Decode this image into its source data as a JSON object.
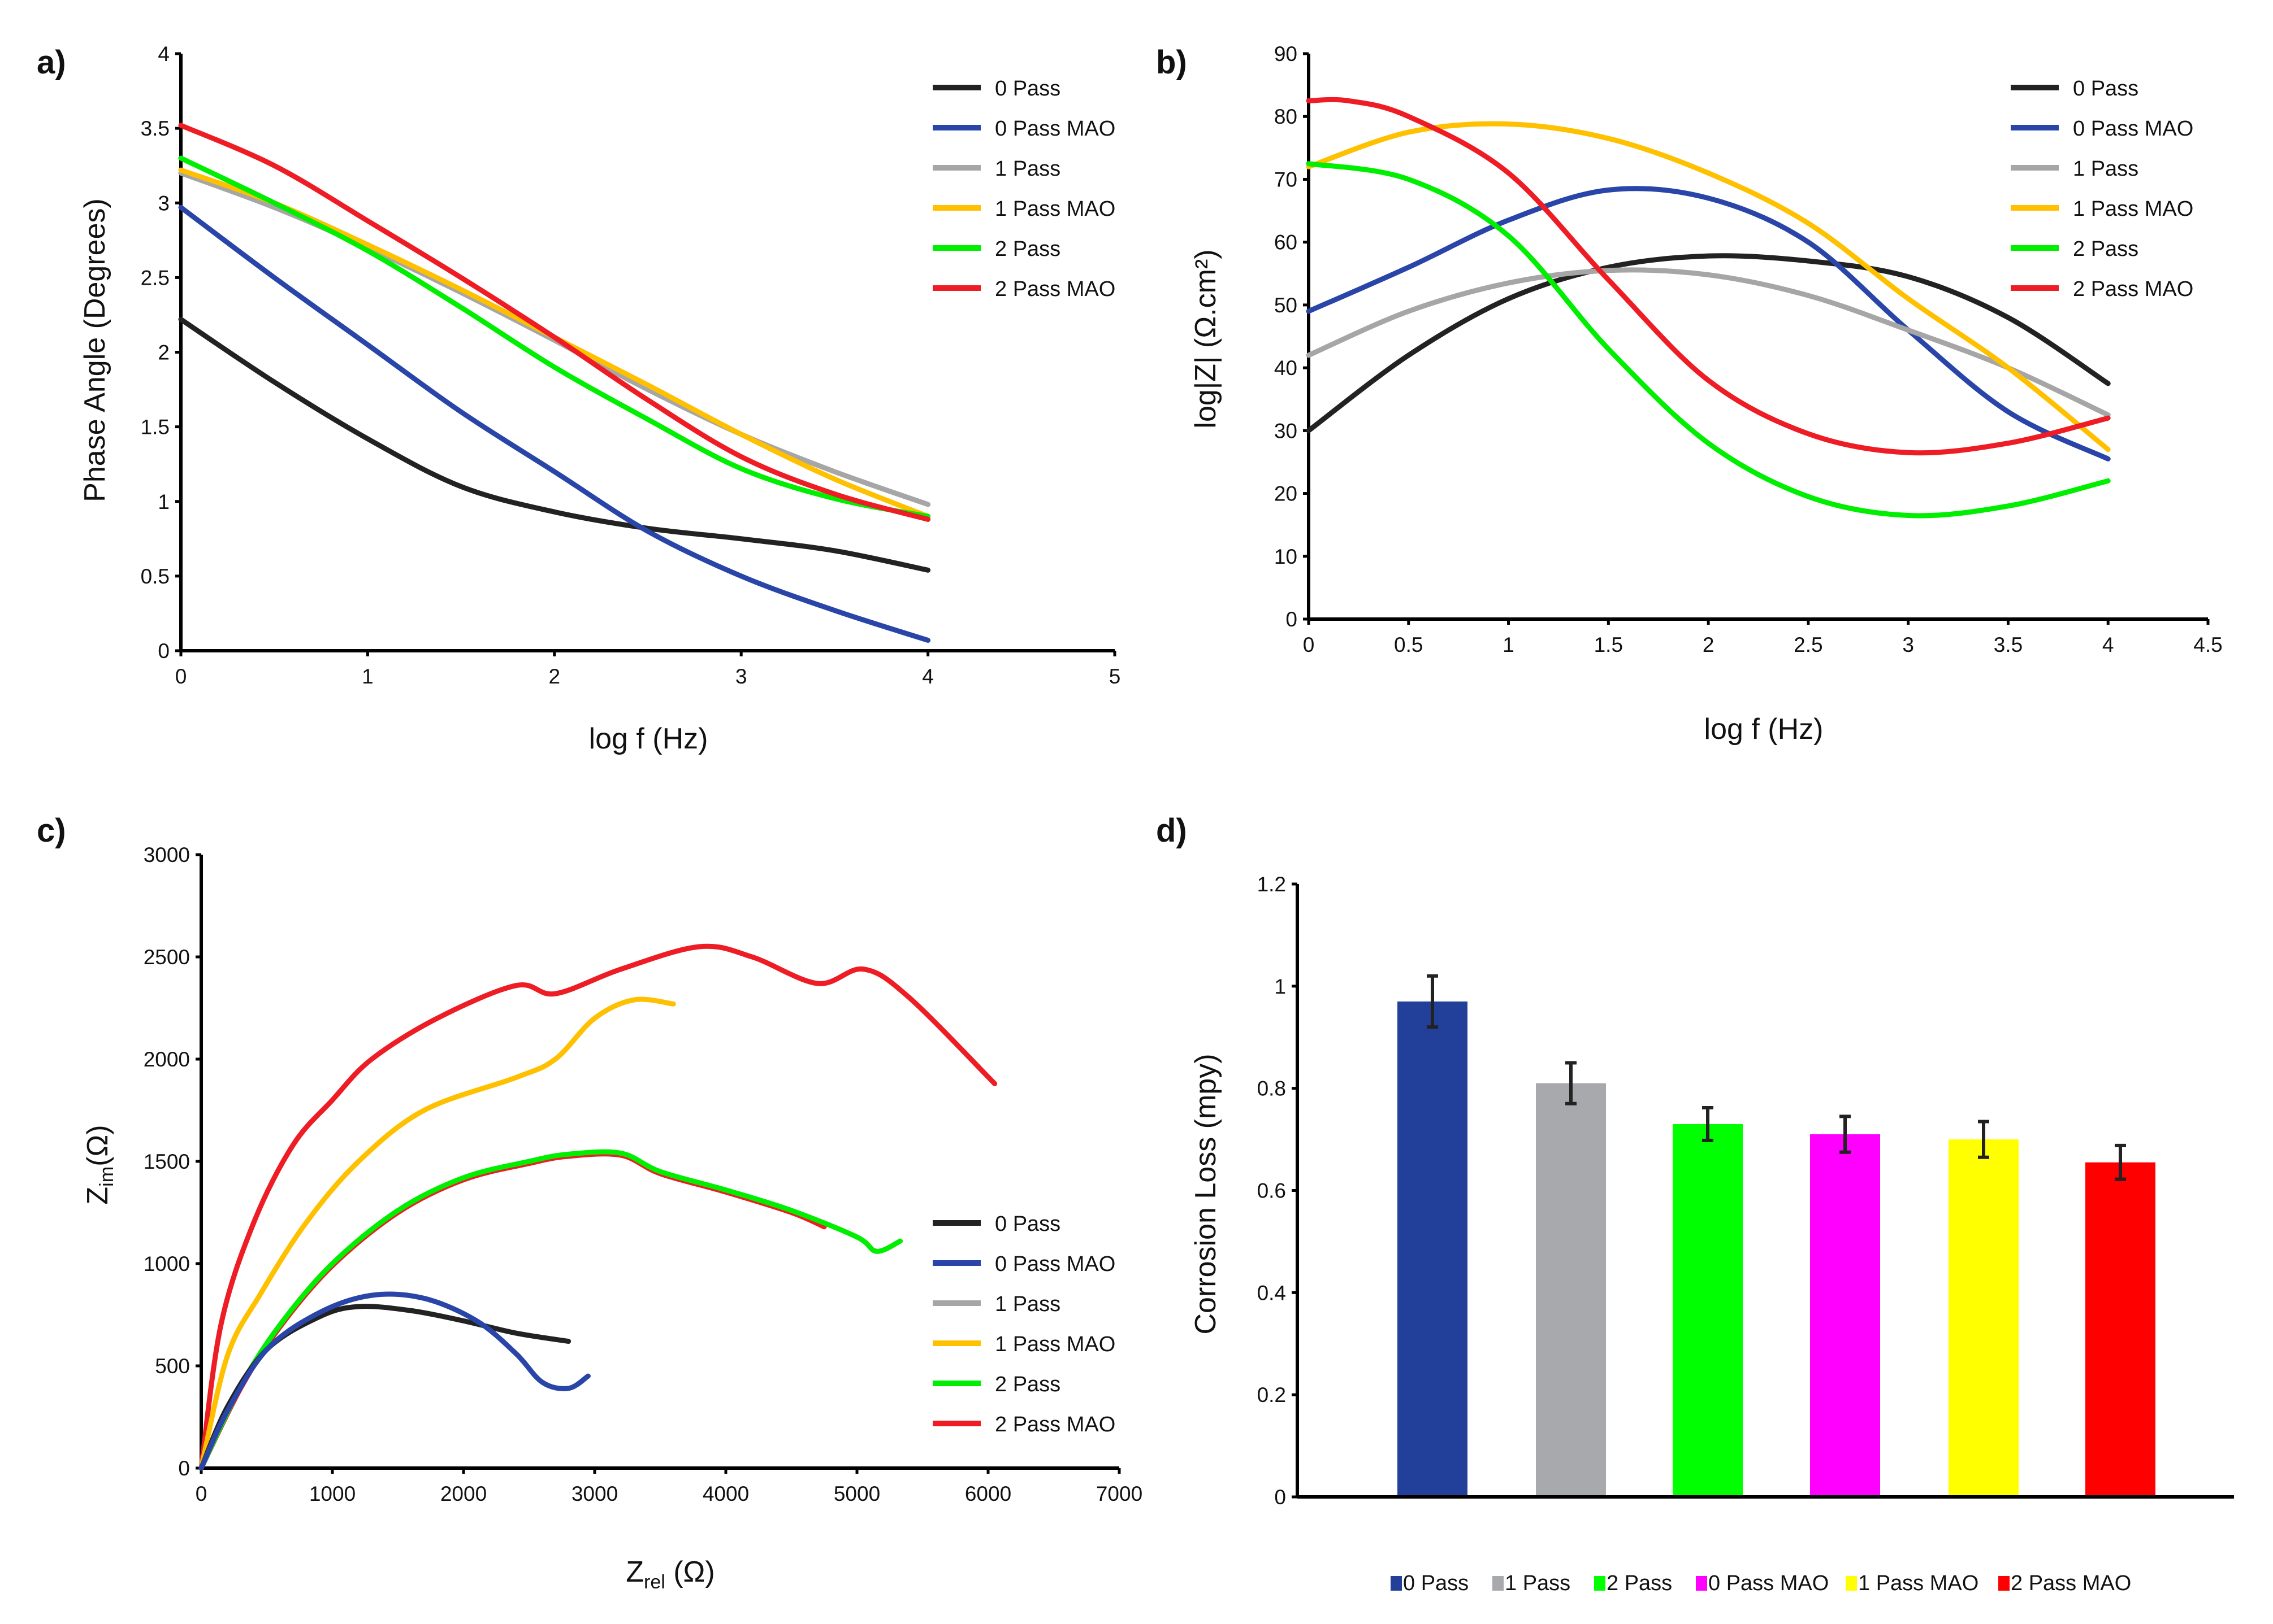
{
  "chart_data": [
    {
      "panel_label": "a)",
      "type": "line",
      "xlabel": "log f (Hz)",
      "ylabel": "Phase Angle (Degrees)",
      "xlim": [
        0,
        5
      ],
      "ylim": [
        0,
        4
      ],
      "xticks": [
        "0",
        "1",
        "2",
        "3",
        "4",
        "5"
      ],
      "yticks": [
        "0",
        "0.5",
        "1",
        "1.5",
        "2",
        "2.5",
        "3",
        "3.5",
        "4"
      ],
      "grid": false,
      "legend_position": "top-right",
      "series": [
        {
          "name": "0 Pass",
          "color": "#222222",
          "points": [
            [
              0,
              2.22
            ],
            [
              0.5,
              1.8
            ],
            [
              1,
              1.42
            ],
            [
              1.5,
              1.1
            ],
            [
              2,
              0.93
            ],
            [
              2.5,
              0.82
            ],
            [
              3,
              0.75
            ],
            [
              3.5,
              0.67
            ],
            [
              4,
              0.54
            ]
          ]
        },
        {
          "name": "0 Pass MAO",
          "color": "#2a45a8",
          "points": [
            [
              0,
              2.97
            ],
            [
              0.5,
              2.5
            ],
            [
              1,
              2.05
            ],
            [
              1.5,
              1.6
            ],
            [
              2,
              1.2
            ],
            [
              2.5,
              0.8
            ],
            [
              3,
              0.5
            ],
            [
              3.5,
              0.27
            ],
            [
              4,
              0.07
            ]
          ]
        },
        {
          "name": "1 Pass",
          "color": "#a6a6a6",
          "points": [
            [
              0,
              3.2
            ],
            [
              0.5,
              2.97
            ],
            [
              1,
              2.7
            ],
            [
              1.5,
              2.4
            ],
            [
              2,
              2.08
            ],
            [
              2.5,
              1.75
            ],
            [
              3,
              1.45
            ],
            [
              3.5,
              1.2
            ],
            [
              4,
              0.98
            ]
          ]
        },
        {
          "name": "1 Pass MAO",
          "color": "#ffc000",
          "points": [
            [
              0,
              3.22
            ],
            [
              0.5,
              3.0
            ],
            [
              1,
              2.72
            ],
            [
              1.5,
              2.42
            ],
            [
              2,
              2.1
            ],
            [
              2.5,
              1.78
            ],
            [
              3,
              1.45
            ],
            [
              3.5,
              1.15
            ],
            [
              4,
              0.9
            ]
          ]
        },
        {
          "name": "2 Pass",
          "color": "#00ee00",
          "points": [
            [
              0,
              3.3
            ],
            [
              0.5,
              3.0
            ],
            [
              1,
              2.68
            ],
            [
              1.5,
              2.3
            ],
            [
              2,
              1.9
            ],
            [
              2.5,
              1.55
            ],
            [
              3,
              1.22
            ],
            [
              3.5,
              1.02
            ],
            [
              4,
              0.9
            ]
          ]
        },
        {
          "name": "2 Pass MAO",
          "color": "#ee1c24",
          "points": [
            [
              0,
              3.52
            ],
            [
              0.5,
              3.25
            ],
            [
              1,
              2.88
            ],
            [
              1.5,
              2.5
            ],
            [
              2,
              2.1
            ],
            [
              2.5,
              1.68
            ],
            [
              3,
              1.3
            ],
            [
              3.5,
              1.05
            ],
            [
              4,
              0.88
            ]
          ]
        }
      ]
    },
    {
      "panel_label": "b)",
      "type": "line",
      "xlabel": "log f (Hz)",
      "ylabel": "log|Z| (Ω.cm²)",
      "xlim": [
        0,
        4.5
      ],
      "ylim": [
        0,
        90
      ],
      "xticks": [
        "0",
        "0.5",
        "1",
        "1.5",
        "2",
        "2.5",
        "3",
        "3.5",
        "4",
        "4.5"
      ],
      "yticks": [
        "0",
        "10",
        "20",
        "30",
        "40",
        "50",
        "60",
        "70",
        "80",
        "90"
      ],
      "grid": false,
      "legend_position": "top-right",
      "series": [
        {
          "name": "0 Pass",
          "color": "#222222",
          "points": [
            [
              0,
              30
            ],
            [
              0.5,
              42
            ],
            [
              1,
              51
            ],
            [
              1.5,
              56
            ],
            [
              2,
              57.8
            ],
            [
              2.5,
              57
            ],
            [
              3,
              54.5
            ],
            [
              3.5,
              48
            ],
            [
              4,
              37.5
            ]
          ]
        },
        {
          "name": "0 Pass MAO",
          "color": "#2a45a8",
          "points": [
            [
              0,
              49
            ],
            [
              0.5,
              56
            ],
            [
              1,
              63.5
            ],
            [
              1.5,
              68.3
            ],
            [
              2,
              67
            ],
            [
              2.5,
              60
            ],
            [
              3,
              46
            ],
            [
              3.5,
              33
            ],
            [
              4,
              25.5
            ]
          ]
        },
        {
          "name": "1 Pass",
          "color": "#a6a6a6",
          "points": [
            [
              0,
              42
            ],
            [
              0.5,
              49
            ],
            [
              1,
              53.5
            ],
            [
              1.5,
              55.5
            ],
            [
              2,
              54.8
            ],
            [
              2.5,
              51.5
            ],
            [
              3,
              46
            ],
            [
              3.5,
              40
            ],
            [
              4,
              32.5
            ]
          ]
        },
        {
          "name": "1 Pass MAO",
          "color": "#ffc000",
          "points": [
            [
              0,
              72
            ],
            [
              0.5,
              77.5
            ],
            [
              1,
              78.8
            ],
            [
              1.5,
              76.5
            ],
            [
              2,
              71
            ],
            [
              2.5,
              63
            ],
            [
              3,
              51
            ],
            [
              3.5,
              40
            ],
            [
              4,
              27
            ]
          ]
        },
        {
          "name": "2 Pass",
          "color": "#00ee00",
          "points": [
            [
              0,
              72.5
            ],
            [
              0.5,
              70
            ],
            [
              1,
              61
            ],
            [
              1.5,
              43
            ],
            [
              2,
              28
            ],
            [
              2.5,
              19.5
            ],
            [
              3,
              16.5
            ],
            [
              3.5,
              18
            ],
            [
              4,
              22
            ]
          ]
        },
        {
          "name": "2 Pass MAO",
          "color": "#ee1c24",
          "points": [
            [
              0,
              82.5
            ],
            [
              0.2,
              82.5
            ],
            [
              0.5,
              80
            ],
            [
              1,
              71
            ],
            [
              1.5,
              54
            ],
            [
              2,
              38
            ],
            [
              2.5,
              29.5
            ],
            [
              3,
              26.5
            ],
            [
              3.5,
              28
            ],
            [
              4,
              32
            ]
          ]
        }
      ]
    },
    {
      "panel_label": "c)",
      "type": "line",
      "xlabel": "Z",
      "xlabel_sub": "rel",
      "xlabel_unit": " (Ω)",
      "ylabel": "Z",
      "ylabel_sub": "im",
      "ylabel_unit": "(Ω)",
      "xlim": [
        0,
        7000
      ],
      "ylim": [
        0,
        3000
      ],
      "xticks": [
        "0",
        "1000",
        "2000",
        "3000",
        "4000",
        "5000",
        "6000",
        "7000"
      ],
      "yticks": [
        "0",
        "500",
        "1000",
        "1500",
        "2000",
        "2500",
        "3000"
      ],
      "grid": false,
      "legend_position": "right",
      "series": [
        {
          "name": "",
          "color": "#ee1c24",
          "in_legend": false,
          "points": [
            [
              0,
              0
            ],
            [
              300,
              390
            ],
            [
              600,
              690
            ],
            [
              1000,
              990
            ],
            [
              1500,
              1250
            ],
            [
              2000,
              1410
            ],
            [
              2500,
              1490
            ],
            [
              2800,
              1525
            ],
            [
              3200,
              1530
            ],
            [
              3500,
              1440
            ],
            [
              4000,
              1350
            ],
            [
              4500,
              1250
            ],
            [
              4750,
              1180
            ]
          ]
        },
        {
          "name": "2 Pass MAO",
          "color": "#ee1c24",
          "points": [
            [
              0,
              0
            ],
            [
              150,
              700
            ],
            [
              400,
              1200
            ],
            [
              700,
              1580
            ],
            [
              1000,
              1800
            ],
            [
              1300,
              2000
            ],
            [
              1800,
              2200
            ],
            [
              2400,
              2360
            ],
            [
              2700,
              2320
            ],
            [
              3200,
              2440
            ],
            [
              3800,
              2550
            ],
            [
              4200,
              2500
            ],
            [
              4700,
              2370
            ],
            [
              5050,
              2440
            ],
            [
              5400,
              2300
            ],
            [
              6050,
              1880
            ]
          ]
        },
        {
          "name": "1 Pass MAO",
          "color": "#ffc000",
          "points": [
            [
              0,
              0
            ],
            [
              200,
              550
            ],
            [
              450,
              850
            ],
            [
              800,
              1200
            ],
            [
              1200,
              1500
            ],
            [
              1700,
              1750
            ],
            [
              2400,
              1910
            ],
            [
              2700,
              2000
            ],
            [
              3000,
              2200
            ],
            [
              3300,
              2290
            ],
            [
              3600,
              2270
            ]
          ]
        },
        {
          "name": "2 Pass",
          "color": "#00ee00",
          "points": [
            [
              0,
              0
            ],
            [
              300,
              400
            ],
            [
              600,
              700
            ],
            [
              1000,
              1000
            ],
            [
              1500,
              1260
            ],
            [
              2000,
              1420
            ],
            [
              2500,
              1500
            ],
            [
              2800,
              1535
            ],
            [
              3200,
              1540
            ],
            [
              3500,
              1450
            ],
            [
              4000,
              1360
            ],
            [
              4500,
              1260
            ],
            [
              5000,
              1130
            ],
            [
              5150,
              1060
            ],
            [
              5330,
              1110
            ]
          ]
        },
        {
          "name": "1 Pass",
          "color": "#a6a6a6",
          "points": []
        },
        {
          "name": "0 Pass",
          "color": "#222222",
          "points": [
            [
              0,
              0
            ],
            [
              200,
              300
            ],
            [
              500,
              580
            ],
            [
              900,
              740
            ],
            [
              1200,
              790
            ],
            [
              1600,
              770
            ],
            [
              2000,
              720
            ],
            [
              2400,
              660
            ],
            [
              2800,
              620
            ]
          ]
        },
        {
          "name": "0 Pass MAO",
          "color": "#2a45a8",
          "points": [
            [
              0,
              0
            ],
            [
              200,
              280
            ],
            [
              500,
              580
            ],
            [
              900,
              760
            ],
            [
              1300,
              845
            ],
            [
              1700,
              830
            ],
            [
              2100,
              720
            ],
            [
              2400,
              560
            ],
            [
              2600,
              420
            ],
            [
              2800,
              390
            ],
            [
              2950,
              450
            ]
          ]
        }
      ],
      "legend_order": [
        "0 Pass",
        "0 Pass MAO",
        "1 Pass",
        "1 Pass MAO",
        "2 Pass",
        "2 Pass MAO"
      ]
    },
    {
      "panel_label": "d)",
      "type": "bar",
      "ylabel": "Corrosion Loss (mpy)",
      "ylim": [
        0,
        1.2
      ],
      "yticks": [
        "0",
        "0.2",
        "0.4",
        "0.6",
        "0.8",
        "1",
        "1.2"
      ],
      "grid": false,
      "legend_position": "bottom",
      "categories": [
        "0 Pass",
        "1 Pass",
        "2 Pass",
        "0 Pass MAO",
        "1 Pass MAO",
        "2 Pass MAO"
      ],
      "values": [
        0.97,
        0.81,
        0.73,
        0.71,
        0.7,
        0.655
      ],
      "errors": [
        0.05,
        0.04,
        0.032,
        0.035,
        0.035,
        0.033
      ],
      "colors": [
        "#22409a",
        "#a7a9ac",
        "#00ff00",
        "#ff00ff",
        "#ffff00",
        "#ff0000"
      ]
    }
  ]
}
